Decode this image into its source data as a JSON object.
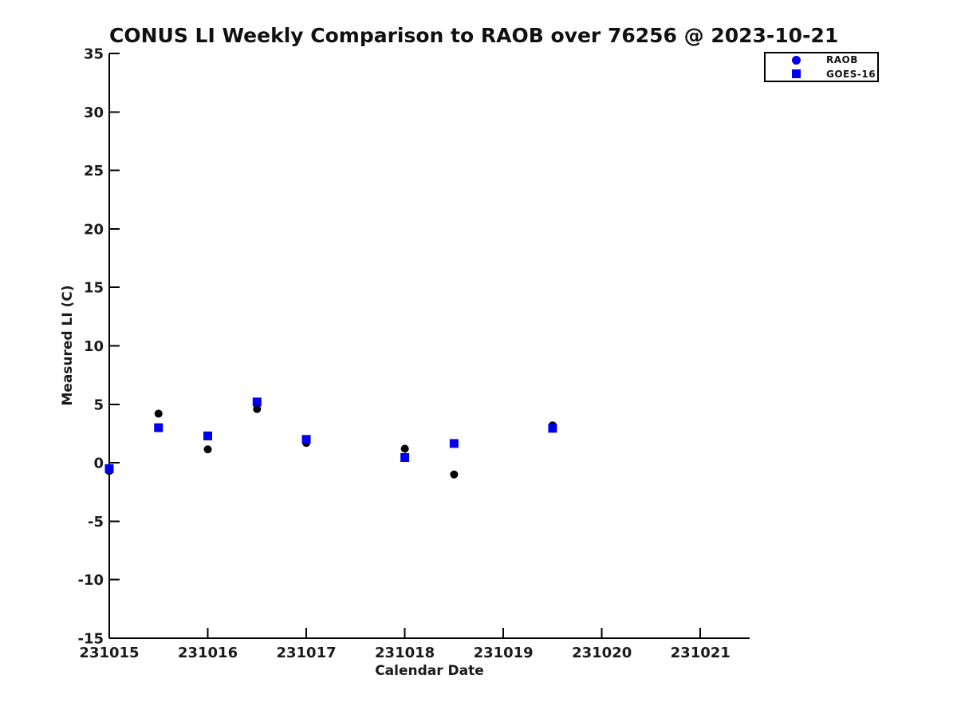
{
  "page": {
    "background_color": "#ffffff"
  },
  "chart_data": {
    "type": "scatter",
    "title": "CONUS LI Weekly Comparison to RAOB over 76256 @ 2023-10-21",
    "xlabel": "Calendar Date",
    "ylabel": "Measured LI (C)",
    "xlim": [
      231015,
      231021.5
    ],
    "ylim": [
      -15,
      35
    ],
    "xticks": [
      "231015",
      "231016",
      "231017",
      "231018",
      "231019",
      "231020",
      "231021"
    ],
    "yticks": [
      "-15",
      "-10",
      "-5",
      "0",
      "5",
      "10",
      "15",
      "20",
      "25",
      "30",
      "35"
    ],
    "grid": false,
    "axis_color": "#000000",
    "legend_position": "outside-top-right",
    "series": [
      {
        "name": "RAOB",
        "marker": "circle",
        "plot_color": "#000000",
        "legend_color": "#0000ee",
        "points": [
          [
            231015.0,
            -0.7
          ],
          [
            231015.5,
            4.2
          ],
          [
            231016.0,
            1.15
          ],
          [
            231016.5,
            4.6
          ],
          [
            231017.0,
            1.7
          ],
          [
            231018.0,
            1.2
          ],
          [
            231018.5,
            -1.0
          ],
          [
            231019.5,
            3.2
          ]
        ]
      },
      {
        "name": "GOES-16",
        "marker": "square",
        "plot_color": "#0000ee",
        "legend_color": "#0000ee",
        "points": [
          [
            231015.0,
            -0.5
          ],
          [
            231015.5,
            3.0
          ],
          [
            231016.0,
            2.3
          ],
          [
            231016.5,
            5.2
          ],
          [
            231017.0,
            2.0
          ],
          [
            231018.0,
            0.45
          ],
          [
            231018.5,
            1.65
          ],
          [
            231019.5,
            2.95
          ]
        ]
      }
    ]
  }
}
